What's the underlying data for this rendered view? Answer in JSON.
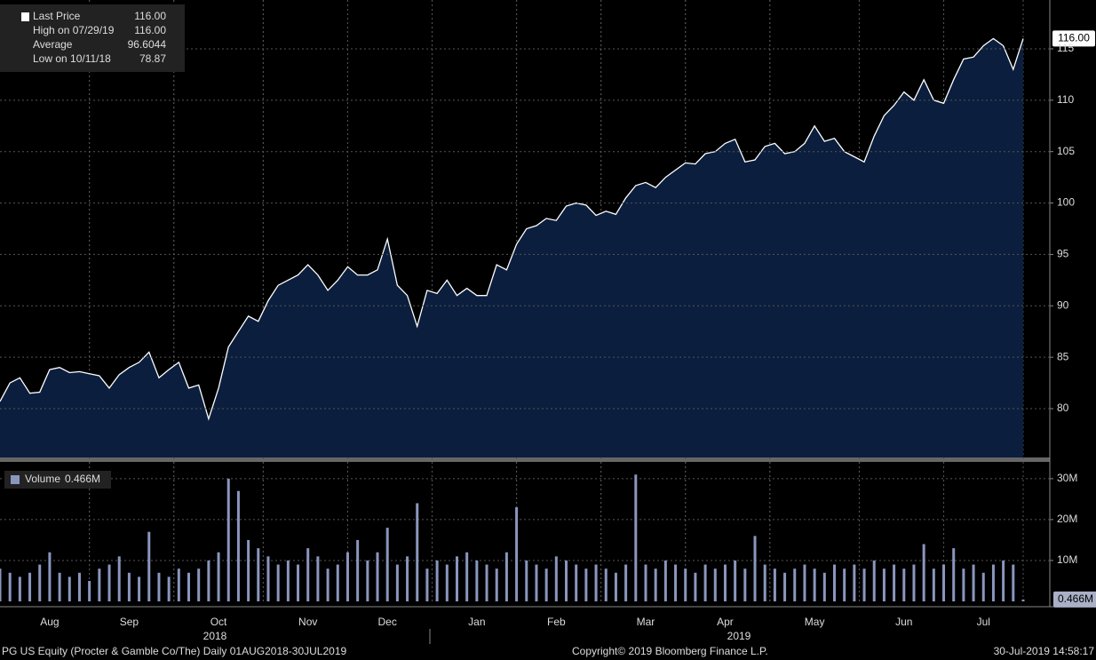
{
  "chart_data": [
    {
      "type": "area",
      "stats": [
        {
          "label": "Last Price",
          "value_label": "116.00"
        },
        {
          "label": "High on 07/29/19",
          "value_label": "116.00"
        },
        {
          "label": "Average",
          "value_label": "96.6044"
        },
        {
          "label": "Low on 10/11/18",
          "value_label": "78.87"
        }
      ],
      "series": [
        {
          "name": "Last Price",
          "color": "#ffffff",
          "fill": "#0b1e3d",
          "values": [
            80.7,
            82.5,
            83,
            81.5,
            81.6,
            83.8,
            84,
            83.5,
            83.6,
            83.4,
            83.2,
            82,
            83.3,
            84,
            84.5,
            85.5,
            83,
            83.8,
            84.5,
            82,
            82.3,
            79,
            82,
            86,
            87.5,
            89,
            88.5,
            90.5,
            92,
            92.5,
            93,
            94,
            93,
            91.5,
            92.5,
            93.8,
            93,
            93,
            93.5,
            96.5,
            92,
            91,
            88,
            91.5,
            91.2,
            92.5,
            91,
            91.7,
            91,
            91,
            94,
            93.5,
            96,
            97.5,
            97.8,
            98.5,
            98.3,
            99.7,
            100,
            99.8,
            98.8,
            99.2,
            98.9,
            100.5,
            101.7,
            102,
            101.5,
            102.5,
            103.2,
            103.9,
            103.8,
            104.8,
            105,
            105.8,
            106.2,
            104,
            104.2,
            105.5,
            105.8,
            104.8,
            105,
            105.8,
            107.5,
            106,
            106.3,
            105,
            104.5,
            104,
            106.5,
            108.5,
            109.5,
            110.8,
            110,
            112,
            110,
            109.7,
            112,
            114,
            114.2,
            115.3,
            116,
            115.3,
            113,
            116
          ],
          "last_value": 116,
          "last_value_label": "116.00"
        }
      ],
      "ylim": [
        75.25,
        119.75
      ],
      "yticks": [
        80,
        85,
        90,
        95,
        100,
        105,
        110,
        115
      ],
      "grid": true
    },
    {
      "type": "bar",
      "categories": [
        null,
        null,
        null,
        null,
        null,
        "Aug",
        null,
        null,
        null,
        null,
        null,
        null,
        null,
        "Sep",
        null,
        null,
        null,
        null,
        null,
        null,
        null,
        null,
        "Oct",
        null,
        null,
        null,
        null,
        null,
        null,
        null,
        null,
        "Nov",
        null,
        null,
        null,
        null,
        null,
        null,
        null,
        "Dec",
        null,
        null,
        null,
        null,
        null,
        null,
        null,
        null,
        "Jan",
        null,
        null,
        null,
        null,
        null,
        null,
        null,
        "Feb",
        null,
        null,
        null,
        null,
        null,
        null,
        null,
        null,
        "Mar",
        null,
        null,
        null,
        null,
        null,
        null,
        null,
        "Apr",
        null,
        null,
        null,
        null,
        null,
        null,
        null,
        null,
        "May",
        null,
        null,
        null,
        null,
        null,
        null,
        null,
        null,
        "Jun",
        null,
        null,
        null,
        null,
        null,
        null,
        null,
        "Jul",
        null,
        null,
        null,
        null
      ],
      "years": [
        {
          "label": "2018"
        },
        {
          "label": "2019"
        }
      ],
      "series": [
        {
          "name": "Volume",
          "color": "#8a96bd",
          "values": [
            8,
            7,
            6,
            7,
            9,
            12,
            7,
            6,
            7,
            5,
            8,
            9,
            11,
            7,
            6,
            17,
            7,
            6,
            8,
            7,
            8,
            10,
            12,
            30,
            27,
            15,
            13,
            11,
            9,
            10,
            9,
            13,
            11,
            8,
            9,
            12,
            15,
            10,
            12,
            18,
            9,
            11,
            24,
            8,
            10,
            9,
            11,
            12,
            10,
            9,
            8,
            12,
            23,
            10,
            9,
            8,
            11,
            10,
            9,
            8,
            9,
            8,
            7,
            9,
            31,
            9,
            8,
            10,
            9,
            8,
            7,
            9,
            8,
            9,
            10,
            8,
            16,
            9,
            8,
            7,
            8,
            9,
            8,
            7,
            9,
            8,
            9,
            8,
            10,
            8,
            9,
            8,
            9,
            14,
            8,
            9,
            13,
            8,
            9,
            7,
            9,
            10,
            9,
            0.466
          ],
          "last_value": 0.466,
          "last_value_label": "0.466M"
        }
      ],
      "ylim": [
        0,
        34.1
      ],
      "yticks": [
        {
          "value": 10,
          "label": "10M"
        },
        {
          "value": 20,
          "label": "20M"
        },
        {
          "value": 30,
          "label": "30M"
        }
      ],
      "grid": true
    }
  ],
  "footer": {
    "security": "PG US Equity (Procter & Gamble Co/The)  Daily 01AUG2018-30JUL2019",
    "copyright": "Copyright© 2019 Bloomberg Finance L.P.",
    "timestamp": "30-Jul-2019 14:58:17"
  }
}
